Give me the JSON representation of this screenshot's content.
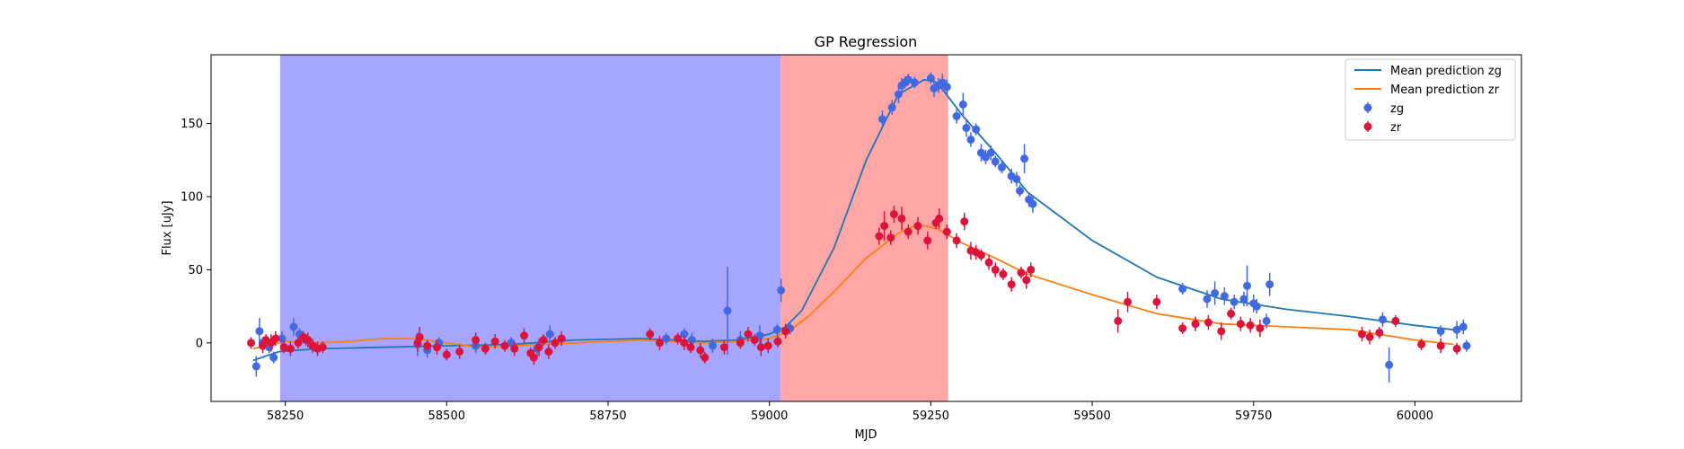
{
  "chart_data": {
    "type": "scatter",
    "title": "GP Regression",
    "xlabel": "MJD",
    "ylabel": "Flux [uJy]",
    "xlim": [
      58135,
      60165
    ],
    "ylim": [
      -40,
      197
    ],
    "xticks": [
      58250,
      58500,
      58750,
      59000,
      59250,
      59500,
      59750,
      60000
    ],
    "yticks": [
      0,
      50,
      100,
      150
    ],
    "grid": false,
    "legend_position": "top-right",
    "shaded_regions": [
      {
        "x0": 58242,
        "x1": 59017,
        "color": "#0000ff",
        "opacity": 0.35
      },
      {
        "x0": 59017,
        "x1": 59277,
        "color": "#ff0000",
        "opacity": 0.35
      }
    ],
    "lines": [
      {
        "name": "Mean prediction zg",
        "color": "#1f77b4",
        "x": [
          58200,
          58240,
          58300,
          58400,
          58500,
          58600,
          58700,
          58800,
          58900,
          58950,
          59000,
          59025,
          59050,
          59100,
          59150,
          59200,
          59240,
          59260,
          59300,
          59350,
          59400,
          59500,
          59600,
          59700,
          59800,
          59900,
          60000,
          60060
        ],
        "y": [
          -12,
          -6,
          -4,
          -3,
          -2,
          -1,
          2,
          3,
          1,
          2,
          6,
          11,
          22,
          65,
          125,
          170,
          180,
          178,
          155,
          130,
          103,
          70,
          45,
          30,
          23,
          18,
          12,
          9
        ]
      },
      {
        "name": "Mean prediction zr",
        "color": "#ff7f0e",
        "x": [
          58200,
          58250,
          58300,
          58350,
          58400,
          58450,
          58500,
          58550,
          58600,
          58650,
          58700,
          58750,
          58800,
          58850,
          58900,
          58950,
          59000,
          59030,
          59060,
          59100,
          59150,
          59200,
          59230,
          59260,
          59300,
          59350,
          59400,
          59500,
          59600,
          59700,
          59800,
          59900,
          60000,
          60060
        ],
        "y": [
          -4,
          1,
          0,
          1,
          3,
          3,
          0,
          -3,
          -2,
          -1,
          0,
          1,
          2,
          1,
          0,
          1,
          3,
          8,
          18,
          35,
          58,
          75,
          81,
          78,
          68,
          58,
          47,
          33,
          20,
          13,
          11,
          9,
          2,
          -1
        ]
      }
    ],
    "series": [
      {
        "name": "zg",
        "color": "#4169e1",
        "points": [
          [
            58205,
            -16,
            7
          ],
          [
            58210,
            8,
            9
          ],
          [
            58215,
            0,
            4
          ],
          [
            58225,
            -3,
            4
          ],
          [
            58232,
            -10,
            4
          ],
          [
            58245,
            3,
            5
          ],
          [
            58263,
            11,
            6
          ],
          [
            58272,
            6,
            4
          ],
          [
            58282,
            2,
            4
          ],
          [
            58292,
            -2,
            5
          ],
          [
            58455,
            -1,
            8
          ],
          [
            58470,
            -5,
            5
          ],
          [
            58488,
            0,
            4
          ],
          [
            58545,
            -2,
            5
          ],
          [
            58600,
            0,
            4
          ],
          [
            58640,
            -4,
            5
          ],
          [
            58660,
            6,
            6
          ],
          [
            58840,
            3,
            4
          ],
          [
            58868,
            6,
            4
          ],
          [
            58880,
            2,
            5
          ],
          [
            58912,
            -2,
            5
          ],
          [
            58935,
            22,
            30
          ],
          [
            58955,
            2,
            6
          ],
          [
            58985,
            5,
            7
          ],
          [
            59012,
            9,
            4
          ],
          [
            59018,
            36,
            8
          ],
          [
            59032,
            10,
            4
          ],
          [
            59175,
            153,
            6
          ],
          [
            59190,
            161,
            5
          ],
          [
            59200,
            170,
            6
          ],
          [
            59205,
            176,
            5
          ],
          [
            59210,
            178,
            4
          ],
          [
            59215,
            180,
            4
          ],
          [
            59225,
            178,
            4
          ],
          [
            59250,
            181,
            4
          ],
          [
            59255,
            174,
            6
          ],
          [
            59262,
            176,
            5
          ],
          [
            59268,
            178,
            6
          ],
          [
            59275,
            175,
            5
          ],
          [
            59290,
            155,
            5
          ],
          [
            59300,
            163,
            8
          ],
          [
            59305,
            147,
            6
          ],
          [
            59312,
            139,
            5
          ],
          [
            59320,
            146,
            4
          ],
          [
            59328,
            130,
            6
          ],
          [
            59335,
            127,
            5
          ],
          [
            59343,
            130,
            5
          ],
          [
            59350,
            124,
            4
          ],
          [
            59360,
            120,
            4
          ],
          [
            59375,
            114,
            5
          ],
          [
            59383,
            112,
            5
          ],
          [
            59388,
            104,
            4
          ],
          [
            59395,
            126,
            10
          ],
          [
            59402,
            98,
            5
          ],
          [
            59408,
            95,
            6
          ],
          [
            59640,
            37,
            4
          ],
          [
            59678,
            30,
            6
          ],
          [
            59690,
            34,
            8
          ],
          [
            59705,
            32,
            6
          ],
          [
            59720,
            28,
            5
          ],
          [
            59735,
            30,
            5
          ],
          [
            59740,
            39,
            14
          ],
          [
            59750,
            27,
            6
          ],
          [
            59755,
            25,
            5
          ],
          [
            59770,
            15,
            5
          ],
          [
            59775,
            40,
            8
          ],
          [
            59950,
            16,
            5
          ],
          [
            59960,
            -15,
            12
          ],
          [
            60040,
            8,
            4
          ],
          [
            60065,
            9,
            6
          ],
          [
            60075,
            11,
            5
          ],
          [
            60080,
            -2,
            4
          ]
        ]
      },
      {
        "name": "zr",
        "color": "#dc143c",
        "points": [
          [
            58197,
            0,
            4
          ],
          [
            58215,
            -2,
            5
          ],
          [
            58220,
            2,
            4
          ],
          [
            58228,
            0,
            6
          ],
          [
            58235,
            3,
            5
          ],
          [
            58248,
            -3,
            4
          ],
          [
            58258,
            -4,
            5
          ],
          [
            58270,
            0,
            4
          ],
          [
            58278,
            4,
            4
          ],
          [
            58285,
            2,
            5
          ],
          [
            58293,
            -2,
            4
          ],
          [
            58300,
            -4,
            5
          ],
          [
            58308,
            -3,
            4
          ],
          [
            58455,
            0,
            6
          ],
          [
            58458,
            4,
            7
          ],
          [
            58470,
            -2,
            4
          ],
          [
            58485,
            -3,
            5
          ],
          [
            58500,
            -8,
            4
          ],
          [
            58520,
            -6,
            5
          ],
          [
            58545,
            2,
            5
          ],
          [
            58560,
            -4,
            4
          ],
          [
            58575,
            1,
            5
          ],
          [
            58590,
            -2,
            4
          ],
          [
            58605,
            -4,
            5
          ],
          [
            58620,
            5,
            5
          ],
          [
            58630,
            -7,
            4
          ],
          [
            58635,
            -10,
            5
          ],
          [
            58643,
            -3,
            6
          ],
          [
            58650,
            2,
            4
          ],
          [
            58658,
            -6,
            5
          ],
          [
            58668,
            0,
            4
          ],
          [
            58678,
            3,
            5
          ],
          [
            58815,
            6,
            4
          ],
          [
            58830,
            0,
            5
          ],
          [
            58858,
            3,
            4
          ],
          [
            58868,
            0,
            5
          ],
          [
            58878,
            -3,
            4
          ],
          [
            58893,
            -5,
            5
          ],
          [
            58900,
            -10,
            4
          ],
          [
            58930,
            -3,
            5
          ],
          [
            58955,
            0,
            4
          ],
          [
            58967,
            6,
            5
          ],
          [
            58977,
            2,
            4
          ],
          [
            58987,
            -3,
            6
          ],
          [
            58998,
            -2,
            5
          ],
          [
            59013,
            1,
            4
          ],
          [
            59025,
            8,
            5
          ],
          [
            59170,
            73,
            6
          ],
          [
            59178,
            80,
            10
          ],
          [
            59188,
            72,
            5
          ],
          [
            59193,
            88,
            6
          ],
          [
            59205,
            85,
            8
          ],
          [
            59215,
            76,
            5
          ],
          [
            59230,
            80,
            6
          ],
          [
            59245,
            70,
            6
          ],
          [
            59258,
            82,
            4
          ],
          [
            59263,
            85,
            7
          ],
          [
            59275,
            76,
            5
          ],
          [
            59290,
            70,
            5
          ],
          [
            59302,
            83,
            6
          ],
          [
            59312,
            63,
            6
          ],
          [
            59320,
            62,
            5
          ],
          [
            59328,
            60,
            4
          ],
          [
            59340,
            55,
            5
          ],
          [
            59350,
            50,
            5
          ],
          [
            59362,
            47,
            4
          ],
          [
            59375,
            40,
            5
          ],
          [
            59390,
            48,
            4
          ],
          [
            59398,
            43,
            6
          ],
          [
            59405,
            50,
            5
          ],
          [
            59540,
            15,
            8
          ],
          [
            59555,
            28,
            7
          ],
          [
            59600,
            28,
            5
          ],
          [
            59640,
            10,
            4
          ],
          [
            59660,
            13,
            5
          ],
          [
            59680,
            14,
            5
          ],
          [
            59700,
            8,
            6
          ],
          [
            59715,
            20,
            4
          ],
          [
            59730,
            13,
            5
          ],
          [
            59745,
            12,
            5
          ],
          [
            59760,
            10,
            6
          ],
          [
            59918,
            6,
            5
          ],
          [
            59930,
            4,
            5
          ],
          [
            59945,
            7,
            4
          ],
          [
            59970,
            15,
            4
          ],
          [
            60010,
            -1,
            4
          ],
          [
            60040,
            -2,
            5
          ],
          [
            60065,
            -4,
            4
          ]
        ]
      }
    ]
  }
}
